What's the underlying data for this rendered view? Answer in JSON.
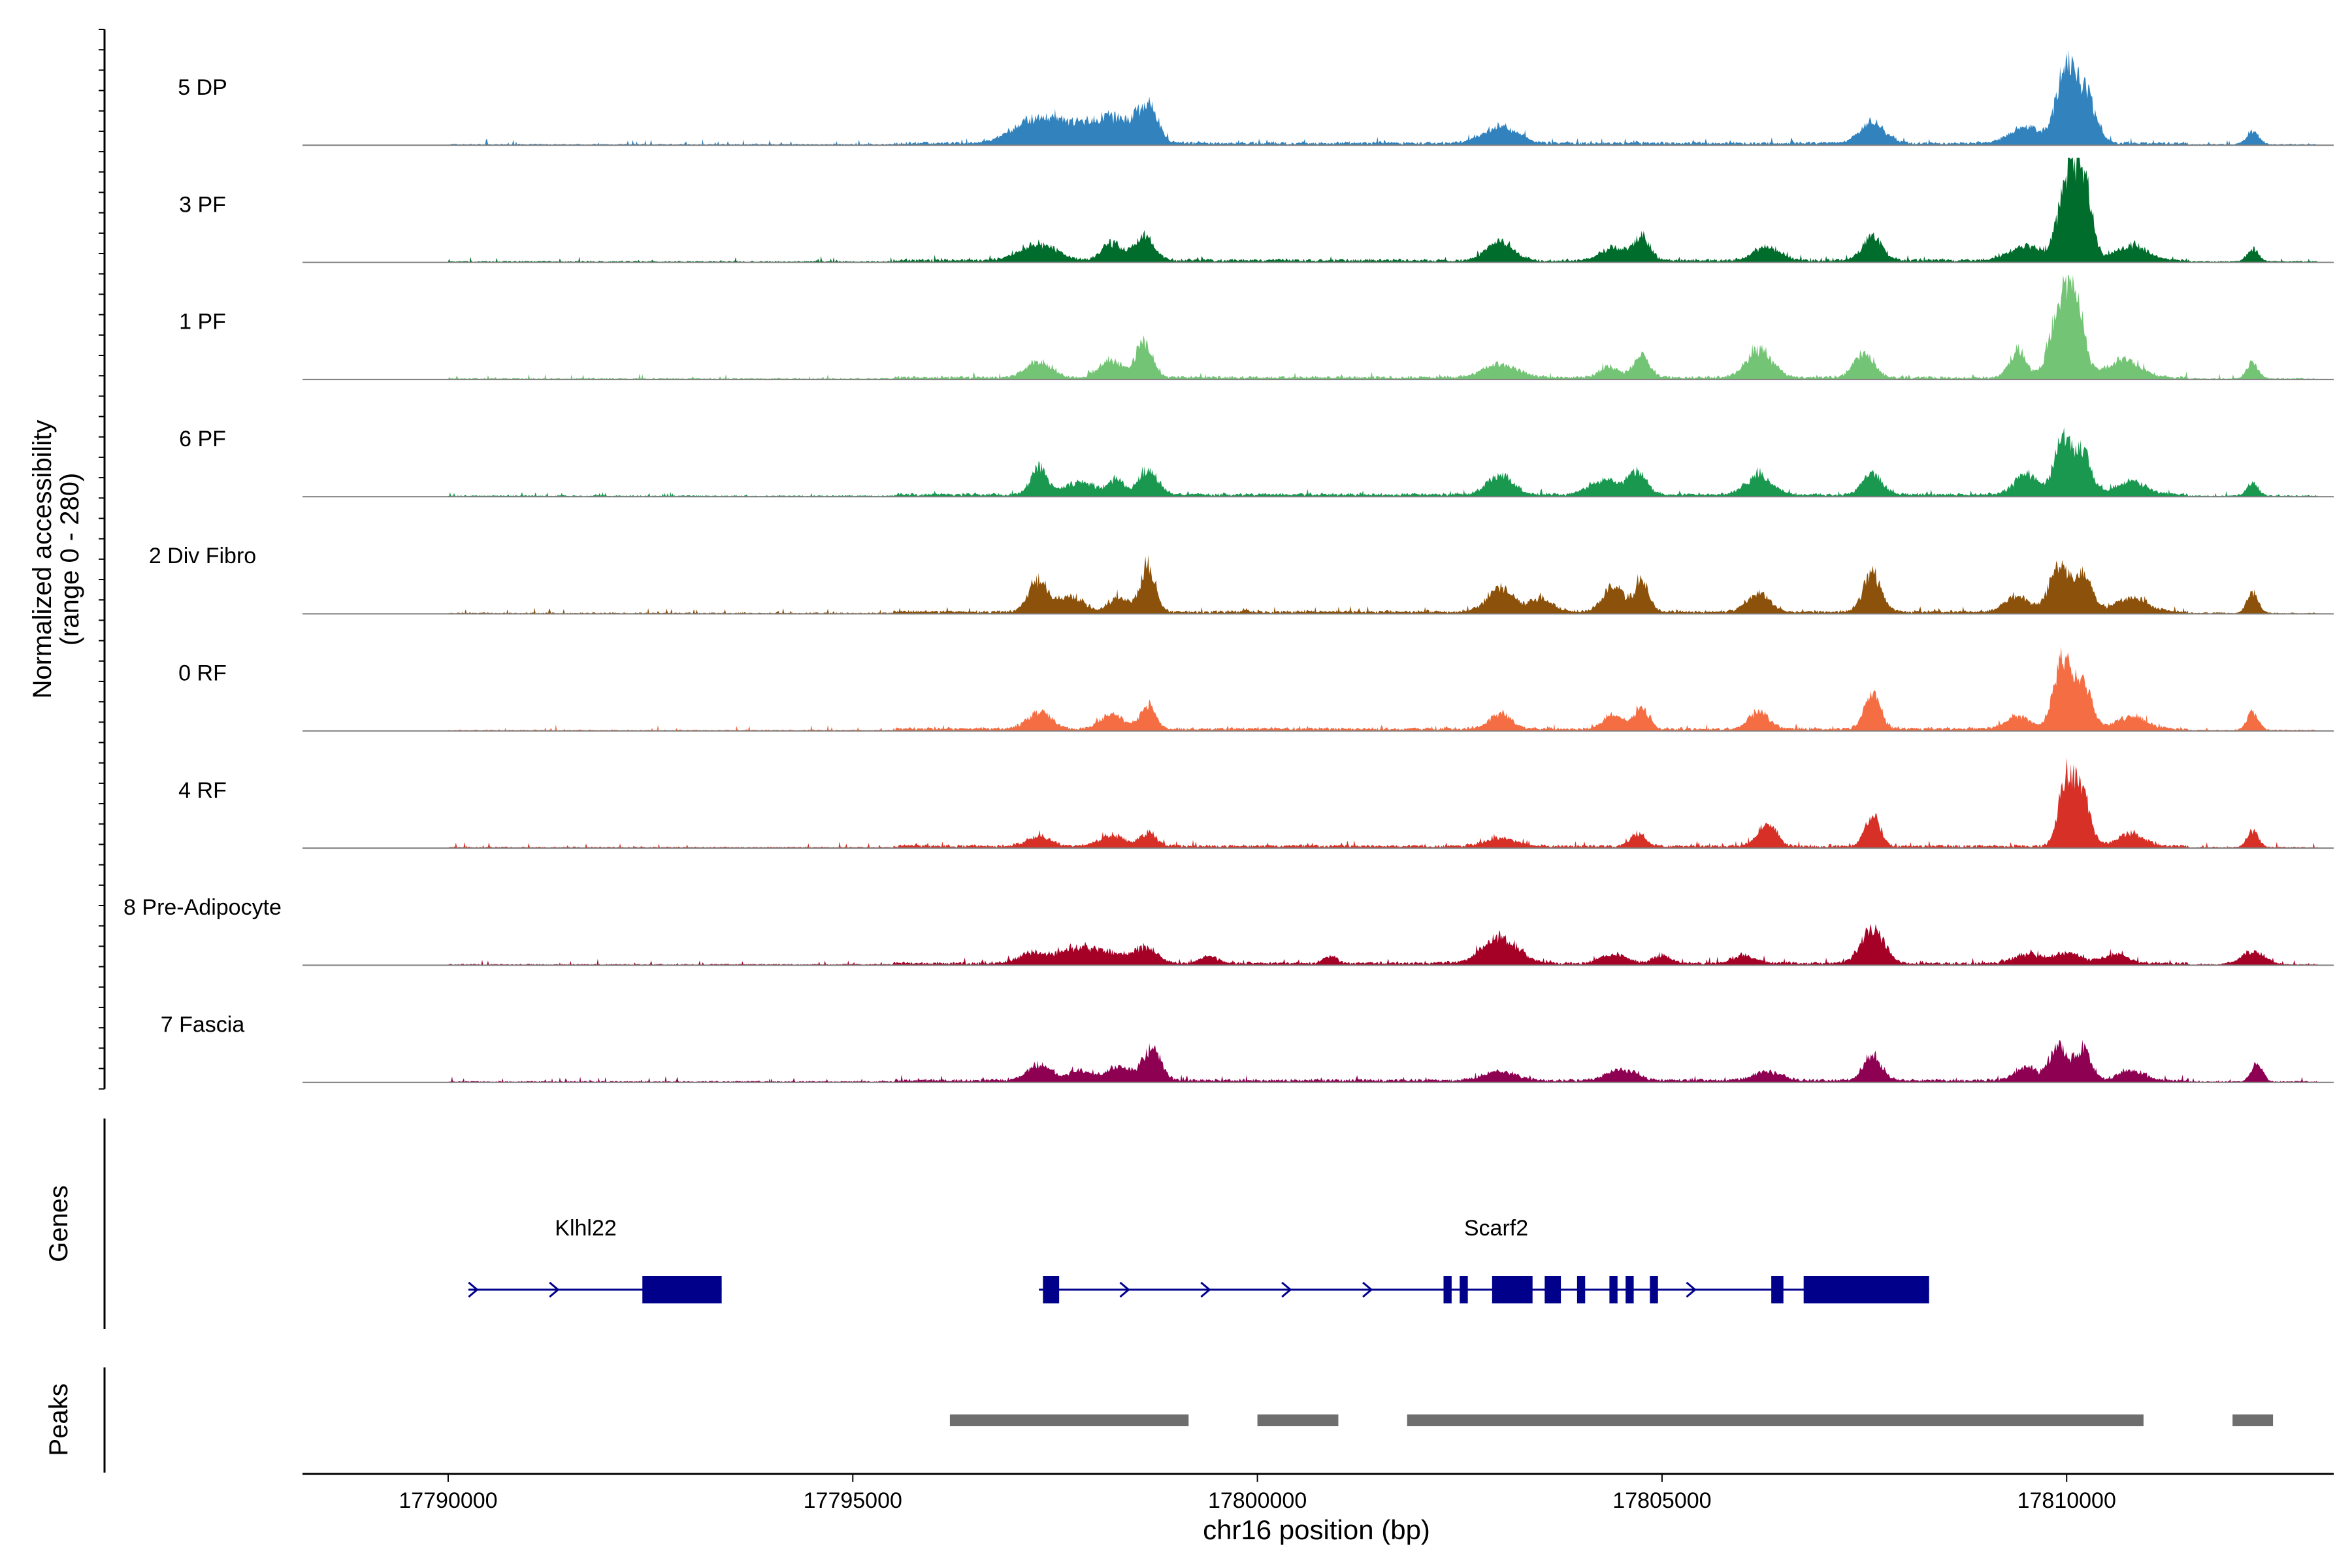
{
  "chart_data": {
    "type": "area",
    "title": "",
    "xlabel": "chr16 position (bp)",
    "ylabel_line1": "Normalized accessibility",
    "ylabel_line2": "(range 0 - 280)",
    "y_range": [
      0,
      280
    ],
    "xlim": [
      17788200,
      17813300
    ],
    "x_ticks": [
      17790000,
      17795000,
      17800000,
      17805000,
      17810000
    ],
    "x_tick_labels": [
      "17790000",
      "17795000",
      "17800000",
      "17805000",
      "17810000"
    ],
    "data_x_range": [
      17790000,
      17813100
    ],
    "series": [
      {
        "name": "5 DP",
        "color": "#3182bd",
        "peaks": [
          [
            17797200,
            55,
            250
          ],
          [
            17797600,
            40,
            250
          ],
          [
            17798000,
            40,
            220
          ],
          [
            17798300,
            50,
            200
          ],
          [
            17798650,
            100,
            120
          ],
          [
            17803000,
            45,
            220
          ],
          [
            17807600,
            60,
            150
          ],
          [
            17809500,
            45,
            200
          ],
          [
            17810000,
            220,
            120
          ],
          [
            17810250,
            120,
            120
          ],
          [
            17812300,
            35,
            80
          ]
        ]
      },
      {
        "name": "3 PF",
        "color": "#006d2c",
        "peaks": [
          [
            17797300,
            45,
            220
          ],
          [
            17798200,
            50,
            120
          ],
          [
            17798600,
            65,
            120
          ],
          [
            17803000,
            55,
            160
          ],
          [
            17804400,
            35,
            150
          ],
          [
            17804750,
            65,
            100
          ],
          [
            17806300,
            40,
            160
          ],
          [
            17807600,
            65,
            120
          ],
          [
            17809500,
            40,
            200
          ],
          [
            17810000,
            200,
            110
          ],
          [
            17810200,
            230,
            100
          ],
          [
            17810800,
            40,
            200
          ],
          [
            17812300,
            35,
            70
          ]
        ]
      },
      {
        "name": "1 PF",
        "color": "#74c476",
        "peaks": [
          [
            17797300,
            45,
            150
          ],
          [
            17798200,
            45,
            150
          ],
          [
            17798600,
            95,
            100
          ],
          [
            17803000,
            35,
            220
          ],
          [
            17804350,
            30,
            120
          ],
          [
            17804750,
            60,
            100
          ],
          [
            17806200,
            75,
            160
          ],
          [
            17807500,
            70,
            120
          ],
          [
            17809400,
            80,
            100
          ],
          [
            17809900,
            170,
            120
          ],
          [
            17810100,
            210,
            110
          ],
          [
            17810700,
            50,
            200
          ],
          [
            17812300,
            45,
            70
          ]
        ]
      },
      {
        "name": "6 PF",
        "color": "#1a9850",
        "peaks": [
          [
            17797300,
            75,
            100
          ],
          [
            17797800,
            35,
            180
          ],
          [
            17798250,
            40,
            100
          ],
          [
            17798650,
            70,
            120
          ],
          [
            17803000,
            55,
            160
          ],
          [
            17804300,
            40,
            180
          ],
          [
            17804700,
            60,
            110
          ],
          [
            17806200,
            55,
            160
          ],
          [
            17807600,
            55,
            120
          ],
          [
            17809500,
            55,
            150
          ],
          [
            17809950,
            150,
            100
          ],
          [
            17810200,
            120,
            100
          ],
          [
            17810800,
            35,
            200
          ],
          [
            17812300,
            35,
            70
          ]
        ]
      },
      {
        "name": "2 Div Fibro",
        "color": "#8c510a",
        "peaks": [
          [
            17797300,
            85,
            120
          ],
          [
            17797700,
            40,
            160
          ],
          [
            17798300,
            40,
            120
          ],
          [
            17798650,
            130,
            90
          ],
          [
            17803000,
            70,
            150
          ],
          [
            17803500,
            35,
            150
          ],
          [
            17804400,
            70,
            130
          ],
          [
            17804750,
            80,
            90
          ],
          [
            17806200,
            50,
            140
          ],
          [
            17807600,
            105,
            110
          ],
          [
            17809400,
            45,
            150
          ],
          [
            17809900,
            135,
            110
          ],
          [
            17810200,
            100,
            110
          ],
          [
            17810800,
            40,
            200
          ],
          [
            17812300,
            55,
            70
          ]
        ]
      },
      {
        "name": "0 RF",
        "color": "#f46d43",
        "peaks": [
          [
            17797300,
            45,
            150
          ],
          [
            17798200,
            40,
            140
          ],
          [
            17798650,
            65,
            90
          ],
          [
            17803000,
            40,
            140
          ],
          [
            17804400,
            40,
            120
          ],
          [
            17804750,
            60,
            90
          ],
          [
            17806200,
            50,
            120
          ],
          [
            17807600,
            90,
            100
          ],
          [
            17809400,
            35,
            150
          ],
          [
            17809950,
            185,
            110
          ],
          [
            17810200,
            120,
            110
          ],
          [
            17810800,
            35,
            180
          ],
          [
            17812300,
            50,
            70
          ]
        ]
      },
      {
        "name": "4 RF",
        "color": "#d73027",
        "peaks": [
          [
            17797300,
            25,
            150
          ],
          [
            17798200,
            30,
            150
          ],
          [
            17798650,
            35,
            100
          ],
          [
            17803000,
            20,
            180
          ],
          [
            17804700,
            35,
            90
          ],
          [
            17806300,
            65,
            110
          ],
          [
            17807600,
            85,
            90
          ],
          [
            17810000,
            180,
            100
          ],
          [
            17810200,
            120,
            100
          ],
          [
            17810800,
            35,
            160
          ],
          [
            17812300,
            45,
            70
          ]
        ]
      },
      {
        "name": "8 Pre-Adipocyte",
        "color": "#a50026",
        "peaks": [
          [
            17797200,
            30,
            150
          ],
          [
            17797700,
            35,
            220
          ],
          [
            17798100,
            30,
            200
          ],
          [
            17798600,
            40,
            160
          ],
          [
            17799400,
            20,
            100
          ],
          [
            17800900,
            20,
            80
          ],
          [
            17803000,
            70,
            220
          ],
          [
            17804400,
            25,
            150
          ],
          [
            17805000,
            20,
            120
          ],
          [
            17806000,
            20,
            150
          ],
          [
            17807600,
            95,
            140
          ],
          [
            17809500,
            25,
            150
          ],
          [
            17810000,
            30,
            180
          ],
          [
            17810600,
            25,
            150
          ],
          [
            17812300,
            35,
            150
          ]
        ]
      },
      {
        "name": "7 Fascia",
        "color": "#8e0152",
        "peaks": [
          [
            17797300,
            45,
            140
          ],
          [
            17797800,
            25,
            160
          ],
          [
            17798300,
            35,
            160
          ],
          [
            17798700,
            85,
            110
          ],
          [
            17803000,
            25,
            200
          ],
          [
            17804500,
            30,
            180
          ],
          [
            17806300,
            25,
            180
          ],
          [
            17807600,
            70,
            110
          ],
          [
            17809500,
            35,
            140
          ],
          [
            17809900,
            90,
            110
          ],
          [
            17810200,
            80,
            100
          ],
          [
            17810800,
            25,
            170
          ],
          [
            17812350,
            50,
            70
          ]
        ]
      }
    ],
    "genes_track": {
      "label": "Genes",
      "genes": [
        {
          "name": "Klhl22",
          "strand": "+",
          "start": 17790250,
          "end": 17793380,
          "exons": [
            [
              17792400,
              17793380
            ]
          ],
          "label_x": 17791700
        },
        {
          "name": "Scarf2",
          "strand": "+",
          "start": 17797300,
          "end": 17808300,
          "exons": [
            [
              17797350,
              17797550
            ],
            [
              17802300,
              17802400
            ],
            [
              17802500,
              17802600
            ],
            [
              17802900,
              17803400
            ],
            [
              17803550,
              17803750
            ],
            [
              17803950,
              17804050
            ],
            [
              17804350,
              17804450
            ],
            [
              17804550,
              17804650
            ],
            [
              17804850,
              17804950
            ],
            [
              17806350,
              17806500
            ],
            [
              17806750,
              17808300
            ]
          ],
          "label_x": 17802950
        }
      ]
    },
    "peaks_track": {
      "label": "Peaks",
      "peaks": [
        [
          17796200,
          17799150
        ],
        [
          17800000,
          17801000
        ],
        [
          17801850,
          17810950
        ],
        [
          17812050,
          17812550
        ]
      ]
    }
  }
}
